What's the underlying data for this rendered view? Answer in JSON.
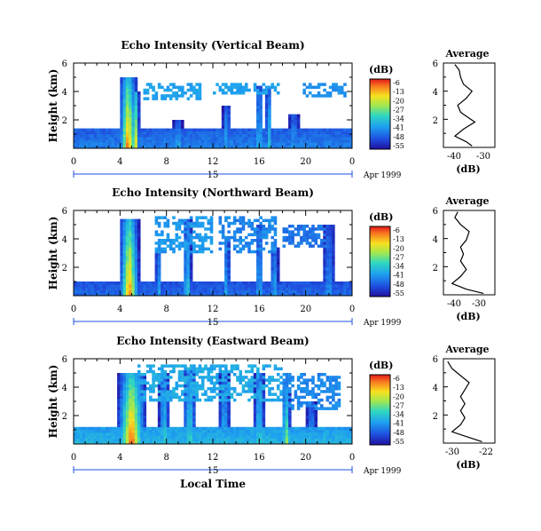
{
  "figure": {
    "time_axis_label": "Local Time"
  },
  "panels": [
    {
      "title": "Echo Intensity (Vertical Beam)",
      "ylabel": "Height (km)",
      "yticks": [
        "6",
        "4",
        "2"
      ],
      "xticks": [
        "0",
        "4",
        "8",
        "12",
        "16",
        "20",
        "0"
      ],
      "day_label": "15",
      "date_label": "Apr 1999",
      "colorbar": {
        "title": "(dB)",
        "ticks": [
          "-6",
          "-13",
          "-20",
          "-27",
          "-34",
          "-41",
          "-48",
          "-55"
        ]
      },
      "profile": {
        "title": "Average",
        "xlabel": "(dB)",
        "xticks": [
          "-40",
          "-30"
        ],
        "yticks": [
          "6",
          "4",
          "2"
        ]
      }
    },
    {
      "title": "Echo Intensity (Northward Beam)",
      "ylabel": "Height (km)",
      "yticks": [
        "6",
        "4",
        "2"
      ],
      "xticks": [
        "0",
        "4",
        "8",
        "12",
        "16",
        "20",
        "0"
      ],
      "day_label": "15",
      "date_label": "Apr 1999",
      "colorbar": {
        "title": "(dB)",
        "ticks": [
          "-6",
          "-13",
          "-20",
          "-27",
          "-34",
          "-41",
          "-48",
          "-55"
        ]
      },
      "profile": {
        "title": "Average",
        "xlabel": "(dB)",
        "xticks": [
          "-40",
          "-30"
        ],
        "yticks": [
          "6",
          "4",
          "2"
        ]
      }
    },
    {
      "title": "Echo Intensity (Eastward Beam)",
      "ylabel": "Height (km)",
      "yticks": [
        "6",
        "4",
        "2"
      ],
      "xticks": [
        "0",
        "4",
        "8",
        "12",
        "16",
        "20",
        "0"
      ],
      "day_label": "15",
      "date_label": "Apr 1999",
      "colorbar": {
        "title": "(dB)",
        "ticks": [
          "-6",
          "-13",
          "-20",
          "-27",
          "-34",
          "-41",
          "-48",
          "-55"
        ]
      },
      "profile": {
        "title": "Average",
        "xlabel": "(dB)",
        "xticks": [
          "-30",
          "-22"
        ],
        "yticks": [
          "6",
          "4",
          "2"
        ]
      }
    }
  ],
  "chart_data": [
    {
      "type": "heatmap",
      "title": "Echo Intensity (Vertical Beam)",
      "xlabel": "Local Time",
      "ylabel": "Height (km)",
      "xlim": [
        0,
        24
      ],
      "ylim": [
        0,
        6
      ],
      "zlim": [
        -55,
        -6
      ],
      "zunit": "dB",
      "surface": {
        "base": -47,
        "top": 1.5
      },
      "plumes": [
        {
          "t": 4.7,
          "w": 0.8,
          "top": 5.0,
          "peak": -7
        },
        {
          "t": 5.3,
          "w": 0.4,
          "top": 4.0,
          "peak": -10
        },
        {
          "t": 9.0,
          "w": 0.4,
          "top": 2.0,
          "peak": -30
        },
        {
          "t": 13.2,
          "w": 0.4,
          "top": 3.0,
          "peak": -34
        },
        {
          "t": 16.0,
          "w": 0.3,
          "top": 4.5,
          "peak": -28
        },
        {
          "t": 16.8,
          "w": 0.3,
          "top": 4.5,
          "peak": -28
        },
        {
          "t": 19.0,
          "w": 0.5,
          "top": 2.5,
          "peak": -36
        }
      ],
      "aloft": [
        {
          "t0": 6.0,
          "t1": 11.0,
          "h0": 3.5,
          "h1": 4.5,
          "v": -40
        },
        {
          "t0": 12.0,
          "t1": 18.0,
          "h0": 3.8,
          "h1": 4.6,
          "v": -40
        },
        {
          "t0": 19.5,
          "t1": 23.5,
          "h0": 3.7,
          "h1": 4.5,
          "v": -42
        }
      ],
      "profile": {
        "x": [
          -34,
          -36,
          -40,
          -37,
          -33,
          -38,
          -39,
          -36,
          -34,
          -37,
          -38,
          -38.5,
          -40
        ],
        "y": [
          0.1,
          0.4,
          0.8,
          1.3,
          1.8,
          2.5,
          3.0,
          3.5,
          4.0,
          4.5,
          5.0,
          5.5,
          5.9
        ],
        "xlim": [
          -44,
          -26
        ],
        "ylim": [
          0,
          6
        ]
      }
    },
    {
      "type": "heatmap",
      "title": "Echo Intensity (Northward Beam)",
      "xlabel": "Local Time",
      "ylabel": "Height (km)",
      "xlim": [
        0,
        24
      ],
      "ylim": [
        0,
        6
      ],
      "zlim": [
        -55,
        -6
      ],
      "zunit": "dB",
      "surface": {
        "base": -48,
        "top": 1.0
      },
      "plumes": [
        {
          "t": 4.8,
          "w": 0.9,
          "top": 5.5,
          "peak": -8
        },
        {
          "t": 7.3,
          "w": 0.3,
          "top": 3.5,
          "peak": -32
        },
        {
          "t": 9.8,
          "w": 0.4,
          "top": 5.5,
          "peak": -30
        },
        {
          "t": 13.2,
          "w": 0.3,
          "top": 4.0,
          "peak": -33
        },
        {
          "t": 16.0,
          "w": 0.3,
          "top": 5.0,
          "peak": -30
        },
        {
          "t": 17.3,
          "w": 0.4,
          "top": 3.5,
          "peak": -34
        },
        {
          "t": 22.0,
          "w": 0.6,
          "top": 5.0,
          "peak": -38
        }
      ],
      "aloft": [
        {
          "t0": 7.0,
          "t1": 12.0,
          "h0": 3.0,
          "h1": 5.5,
          "v": -40
        },
        {
          "t0": 12.5,
          "t1": 17.5,
          "h0": 3.0,
          "h1": 5.5,
          "v": -42
        },
        {
          "t0": 18.0,
          "t1": 22.0,
          "h0": 3.5,
          "h1": 5.0,
          "v": -44
        }
      ],
      "profile": {
        "x": [
          -30,
          -36,
          -41,
          -38,
          -36,
          -38,
          -37,
          -38,
          -36,
          -35,
          -38,
          -40,
          -39
        ],
        "y": [
          0.1,
          0.4,
          0.8,
          1.3,
          1.8,
          2.4,
          2.9,
          3.4,
          3.9,
          4.5,
          5.0,
          5.5,
          5.9
        ],
        "xlim": [
          -44,
          -26
        ],
        "ylim": [
          0,
          6
        ]
      }
    },
    {
      "type": "heatmap",
      "title": "Echo Intensity (Eastward Beam)",
      "xlabel": "Local Time",
      "ylabel": "Height (km)",
      "xlim": [
        0,
        24
      ],
      "ylim": [
        0,
        6
      ],
      "zlim": [
        -55,
        -6
      ],
      "zunit": "dB",
      "surface": {
        "base": -40,
        "top": 1.2
      },
      "plumes": [
        {
          "t": 5.0,
          "w": 1.3,
          "top": 5.0,
          "peak": -6
        },
        {
          "t": 7.8,
          "w": 0.5,
          "top": 5.0,
          "peak": -30
        },
        {
          "t": 10.0,
          "w": 0.6,
          "top": 5.5,
          "peak": -28
        },
        {
          "t": 13.0,
          "w": 0.5,
          "top": 5.0,
          "peak": -32
        },
        {
          "t": 16.0,
          "w": 0.5,
          "top": 5.0,
          "peak": -28
        },
        {
          "t": 18.3,
          "w": 0.4,
          "top": 4.0,
          "peak": -20
        },
        {
          "t": 20.5,
          "w": 0.5,
          "top": 3.0,
          "peak": -36
        }
      ],
      "aloft": [
        {
          "t0": 5.5,
          "t1": 18.0,
          "h0": 3.0,
          "h1": 5.5,
          "v": -38
        },
        {
          "t0": 18.0,
          "t1": 23.0,
          "h0": 2.5,
          "h1": 5.0,
          "v": -42
        }
      ],
      "profile": {
        "x": [
          -23,
          -26,
          -30,
          -28,
          -27,
          -28,
          -27,
          -28,
          -27,
          -26,
          -28,
          -30,
          -31
        ],
        "y": [
          0.1,
          0.4,
          0.8,
          1.3,
          1.8,
          2.3,
          2.8,
          3.3,
          3.8,
          4.3,
          4.8,
          5.3,
          5.8
        ],
        "xlim": [
          -32,
          -20
        ],
        "ylim": [
          0,
          6
        ]
      }
    }
  ]
}
